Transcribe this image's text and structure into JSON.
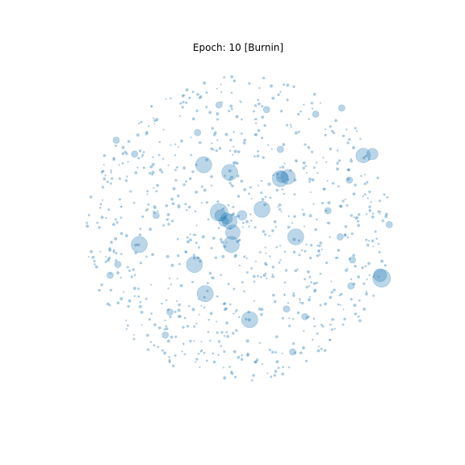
{
  "chart_data": {
    "type": "scatter",
    "title": "Epoch: 10 [Burnin]",
    "xlabel": "",
    "ylabel": "",
    "axes_visible": false,
    "grid": false,
    "legend": "none",
    "xlim": [
      -1.05,
      1.05
    ],
    "ylim": [
      -1.05,
      1.05
    ],
    "marker_color": "#1f77b4",
    "marker_alpha": 0.3,
    "background_cloud": {
      "count": 820,
      "radius": 1.0,
      "size_range": [
        2,
        4
      ],
      "note_density": "uniform disc"
    },
    "large_points": [
      {
        "x": -0.23,
        "y": 0.41,
        "s": 10
      },
      {
        "x": -0.06,
        "y": 0.36,
        "s": 10
      },
      {
        "x": 0.27,
        "y": 0.32,
        "s": 10
      },
      {
        "x": 0.32,
        "y": 0.33,
        "s": 9
      },
      {
        "x": 0.81,
        "y": 0.47,
        "s": 9
      },
      {
        "x": -0.13,
        "y": 0.1,
        "s": 11
      },
      {
        "x": 0.15,
        "y": 0.12,
        "s": 10
      },
      {
        "x": -0.06,
        "y": 0.04,
        "s": 9
      },
      {
        "x": -0.08,
        "y": 0.06,
        "s": 7
      },
      {
        "x": -0.04,
        "y": -0.03,
        "s": 9
      },
      {
        "x": -0.05,
        "y": -0.11,
        "s": 10
      },
      {
        "x": 0.37,
        "y": -0.06,
        "s": 10
      },
      {
        "x": -0.65,
        "y": -0.11,
        "s": 10
      },
      {
        "x": -0.29,
        "y": -0.24,
        "s": 10
      },
      {
        "x": -0.22,
        "y": -0.43,
        "s": 10
      },
      {
        "x": 0.07,
        "y": -0.6,
        "s": 10
      },
      {
        "x": 0.93,
        "y": -0.33,
        "s": 11
      },
      {
        "x": 0.92,
        "y": -0.31,
        "s": 8
      },
      {
        "x": 0.87,
        "y": 0.48,
        "s": 7
      },
      {
        "x": -0.12,
        "y": 0.08,
        "s": 7
      },
      {
        "x": -0.1,
        "y": 0.04,
        "s": 6
      },
      {
        "x": 0.02,
        "y": 0.08,
        "s": 6
      },
      {
        "x": 0.28,
        "y": 0.33,
        "s": 7
      },
      {
        "x": -0.13,
        "y": 0.8,
        "s": 4
      },
      {
        "x": 0.18,
        "y": 0.77,
        "s": 4
      },
      {
        "x": 0.5,
        "y": 0.74,
        "s": 4
      },
      {
        "x": 0.67,
        "y": 0.78,
        "s": 4
      },
      {
        "x": -0.8,
        "y": 0.57,
        "s": 4
      },
      {
        "x": -0.27,
        "y": 0.62,
        "s": 4
      },
      {
        "x": 0.27,
        "y": 0.51,
        "s": 4
      },
      {
        "x": -0.54,
        "y": 0.08,
        "s": 4
      },
      {
        "x": -0.79,
        "y": -0.24,
        "s": 4
      },
      {
        "x": -0.84,
        "y": -0.31,
        "s": 4
      },
      {
        "x": 0.74,
        "y": -0.21,
        "s": 4
      },
      {
        "x": 0.58,
        "y": 0.11,
        "s": 4
      },
      {
        "x": 0.66,
        "y": -0.06,
        "s": 4
      },
      {
        "x": -0.45,
        "y": -0.55,
        "s": 4
      },
      {
        "x": -0.48,
        "y": -0.7,
        "s": 4
      },
      {
        "x": 0.35,
        "y": -0.81,
        "s": 4
      },
      {
        "x": 0.43,
        "y": -0.58,
        "s": 4
      },
      {
        "x": 0.31,
        "y": -0.53,
        "s": 4
      },
      {
        "x": 0.72,
        "y": 0.31,
        "s": 4
      },
      {
        "x": 0.98,
        "y": 0.02,
        "s": 4
      },
      {
        "x": -0.68,
        "y": 0.48,
        "s": 4
      },
      {
        "x": 0.73,
        "y": -0.38,
        "s": 4
      }
    ]
  }
}
